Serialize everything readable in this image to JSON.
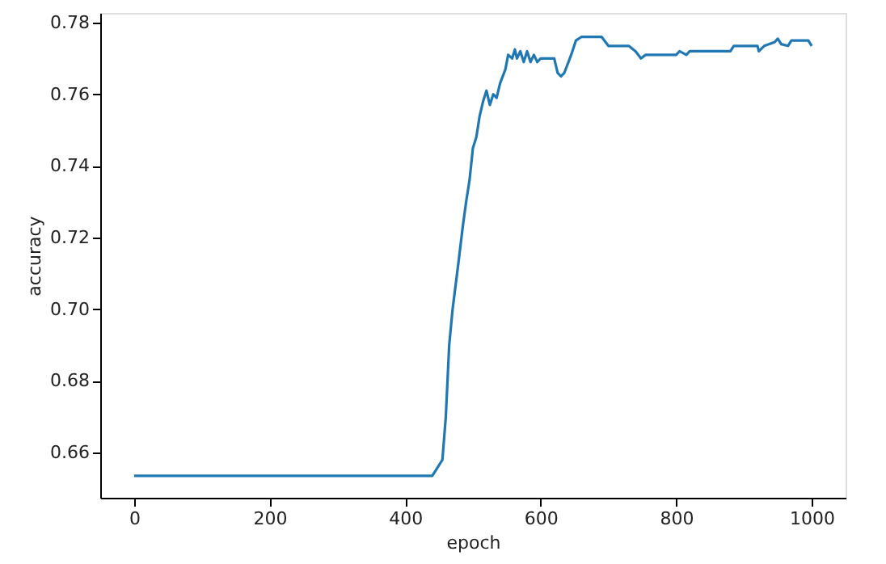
{
  "chart_data": {
    "type": "line",
    "xlabel": "epoch",
    "ylabel": "accuracy",
    "x": [
      0,
      100,
      200,
      300,
      400,
      440,
      445,
      455,
      460,
      465,
      470,
      478,
      485,
      490,
      495,
      500,
      505,
      510,
      515,
      520,
      525,
      530,
      535,
      540,
      548,
      552,
      558,
      562,
      565,
      570,
      575,
      580,
      585,
      590,
      595,
      600,
      620,
      625,
      630,
      635,
      645,
      652,
      660,
      690,
      700,
      730,
      740,
      748,
      755,
      800,
      805,
      815,
      820,
      880,
      885,
      920,
      922,
      930,
      945,
      950,
      955,
      965,
      970,
      995,
      1000
    ],
    "series": [
      {
        "color": "#1f77b4",
        "values": [
          0.6535,
          0.6535,
          0.6535,
          0.6535,
          0.6535,
          0.6535,
          0.655,
          0.658,
          0.67,
          0.69,
          0.7,
          0.712,
          0.723,
          0.73,
          0.736,
          0.745,
          0.748,
          0.754,
          0.758,
          0.761,
          0.757,
          0.76,
          0.759,
          0.763,
          0.767,
          0.771,
          0.77,
          0.7725,
          0.77,
          0.772,
          0.769,
          0.772,
          0.769,
          0.771,
          0.769,
          0.77,
          0.77,
          0.766,
          0.765,
          0.766,
          0.771,
          0.775,
          0.776,
          0.776,
          0.7735,
          0.7735,
          0.772,
          0.77,
          0.771,
          0.771,
          0.772,
          0.771,
          0.772,
          0.772,
          0.7735,
          0.7735,
          0.772,
          0.7735,
          0.7745,
          0.7755,
          0.774,
          0.7735,
          0.775,
          0.775,
          0.7735
        ]
      }
    ],
    "xlim": [
      -50,
      1050
    ],
    "ylim": [
      0.6474,
      0.7827
    ],
    "xticks": [
      0,
      200,
      400,
      600,
      800,
      1000
    ],
    "yticks": [
      {
        "value": 0.66,
        "label": "0.66"
      },
      {
        "value": 0.68,
        "label": "0.68"
      },
      {
        "value": 0.7,
        "label": "0.70"
      },
      {
        "value": 0.72,
        "label": "0.72"
      },
      {
        "value": 0.74,
        "label": "0.74"
      },
      {
        "value": 0.76,
        "label": "0.76"
      },
      {
        "value": 0.78,
        "label": "0.78"
      }
    ],
    "grid": false
  }
}
